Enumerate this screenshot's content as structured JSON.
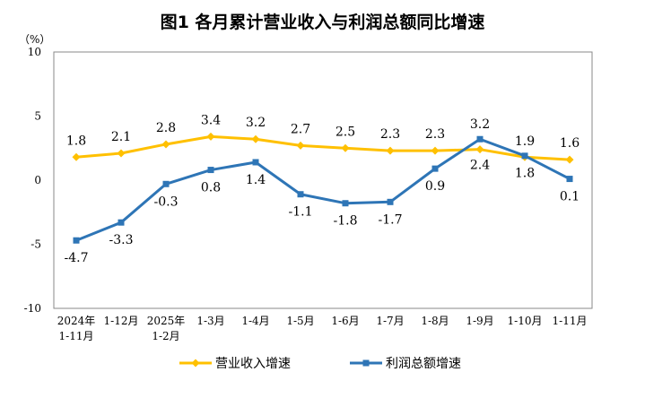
{
  "chart_data": {
    "type": "line",
    "title": "图1  各月累计营业收入与利润总额同比增速",
    "y_unit": "（%）",
    "ylim": [
      -10,
      10
    ],
    "yticks": [
      "10",
      "5",
      "0",
      "-5",
      "-10"
    ],
    "ytick_values": [
      10,
      5,
      0,
      -5,
      -10
    ],
    "categories": [
      [
        "2024年",
        "1-11月"
      ],
      [
        "1-12月"
      ],
      [
        "2025年",
        "1-2月"
      ],
      [
        "1-3月"
      ],
      [
        "1-4月"
      ],
      [
        "1-5月"
      ],
      [
        "1-6月"
      ],
      [
        "1-7月"
      ],
      [
        "1-8月"
      ],
      [
        "1-9月"
      ],
      [
        "1-10月"
      ],
      [
        "1-11月"
      ]
    ],
    "series": [
      {
        "name": "营业收入增速",
        "color": "#FFC000",
        "marker": "diamond",
        "values": [
          1.8,
          2.1,
          2.8,
          3.4,
          3.2,
          2.7,
          2.5,
          2.3,
          2.3,
          2.4,
          1.8,
          1.6
        ],
        "labels": [
          "1.8",
          "2.1",
          "2.8",
          "3.4",
          "3.2",
          "2.7",
          "2.5",
          "2.3",
          "2.3",
          "2.4",
          "1.8",
          "1.6"
        ]
      },
      {
        "name": "利润总额增速",
        "color": "#2E75B6",
        "marker": "square",
        "values": [
          -4.7,
          -3.3,
          -0.3,
          0.8,
          1.4,
          -1.1,
          -1.8,
          -1.7,
          0.9,
          3.2,
          1.9,
          0.1
        ],
        "labels": [
          "-4.7",
          "-3.3",
          "-0.3",
          "0.8",
          "1.4",
          "-1.1",
          "-1.8",
          "-1.7",
          "0.9",
          "3.2",
          "1.9",
          "0.1"
        ]
      }
    ],
    "grid": false,
    "legend": "bottom"
  }
}
